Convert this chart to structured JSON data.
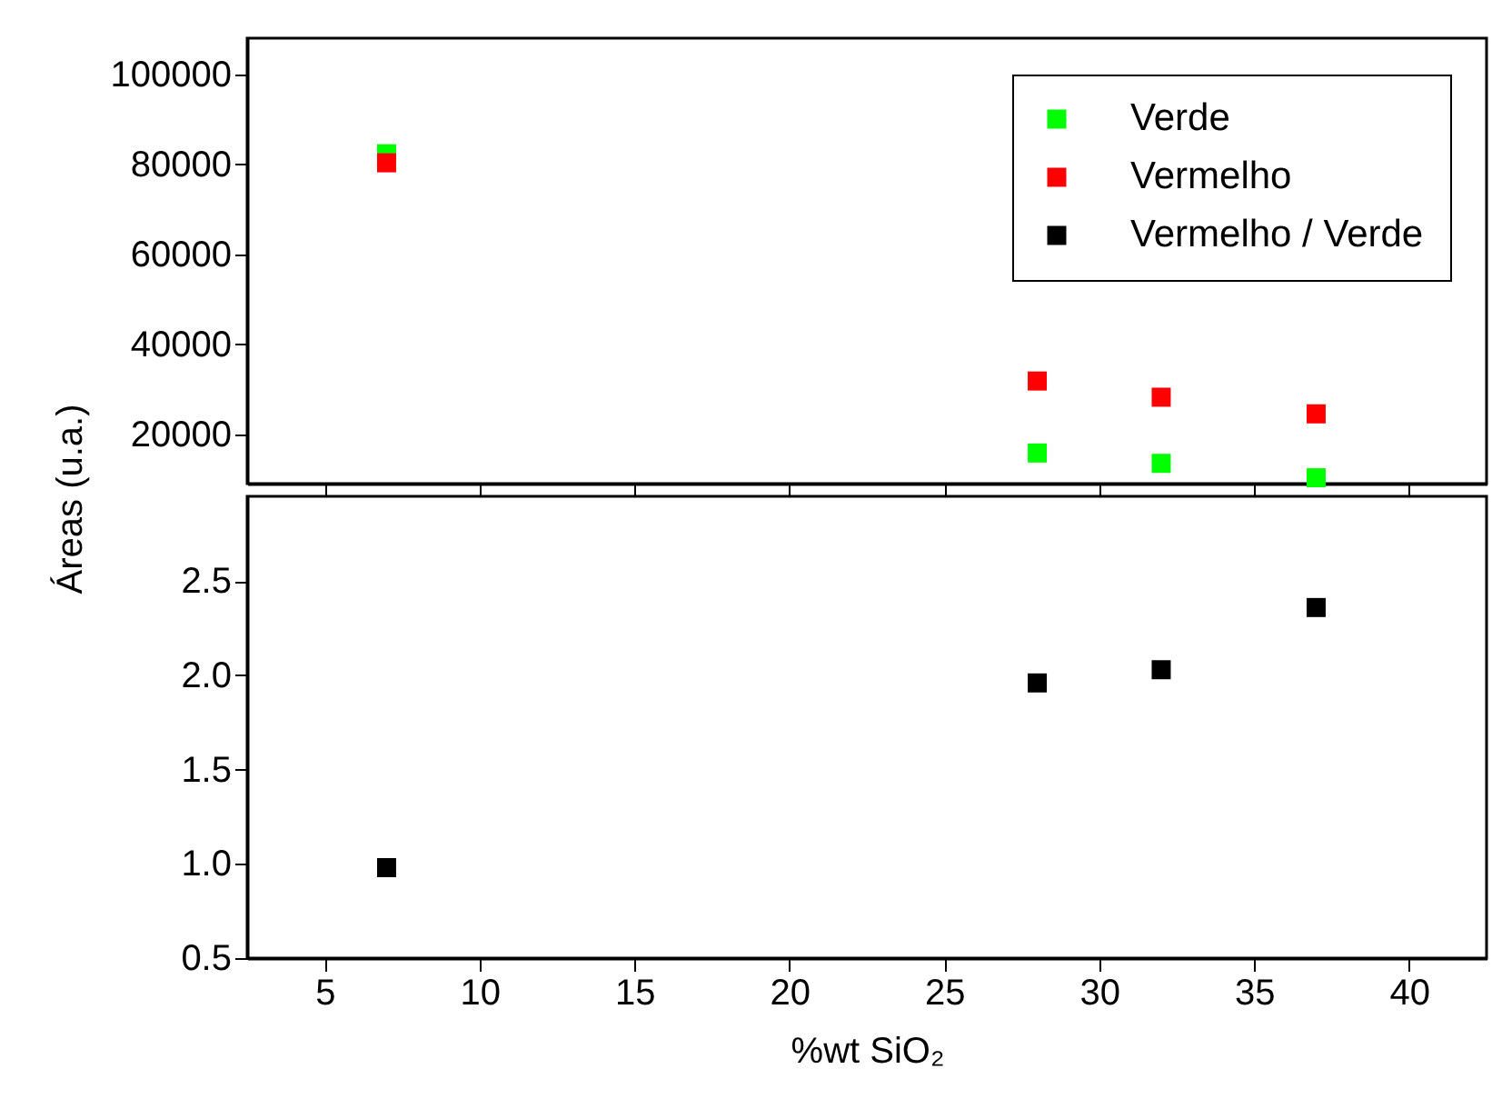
{
  "chart_data": [
    {
      "type": "scatter",
      "ylabel": "Áreas (u.a.)",
      "x": [
        7,
        28,
        32,
        37
      ],
      "xlim": [
        2.5,
        42.5
      ],
      "xticks": [
        5,
        10,
        15,
        20,
        25,
        30,
        35,
        40
      ],
      "ylim": [
        9000,
        108000
      ],
      "yticks": [
        20000,
        40000,
        60000,
        80000,
        100000
      ],
      "tick_labels": "y",
      "marker": "square",
      "legend": "top right",
      "series": [
        {
          "name": "Verde",
          "color": "#00ff00",
          "values": [
            82300,
            15800,
            13500,
            10300
          ]
        },
        {
          "name": "Vermelho",
          "color": "#ff0000",
          "values": [
            80300,
            31800,
            28200,
            24500
          ]
        }
      ]
    },
    {
      "type": "scatter",
      "xlabel": "%wt SiO₂",
      "x": [
        7,
        28,
        32,
        37
      ],
      "xlim": [
        2.5,
        42.5
      ],
      "xticks": [
        5,
        10,
        15,
        20,
        25,
        30,
        35,
        40
      ],
      "ylim": [
        0.5,
        2.95
      ],
      "yticks": [
        0.5,
        {
          "value": 1.0,
          "label": "1.0"
        },
        1.5,
        {
          "value": 2.0,
          "label": "2.0"
        },
        2.5
      ],
      "marker": "square",
      "series": [
        {
          "name": "Vermelho / Verde",
          "color": "#000000",
          "values": [
            0.98,
            1.96,
            2.03,
            2.36
          ]
        }
      ]
    }
  ]
}
